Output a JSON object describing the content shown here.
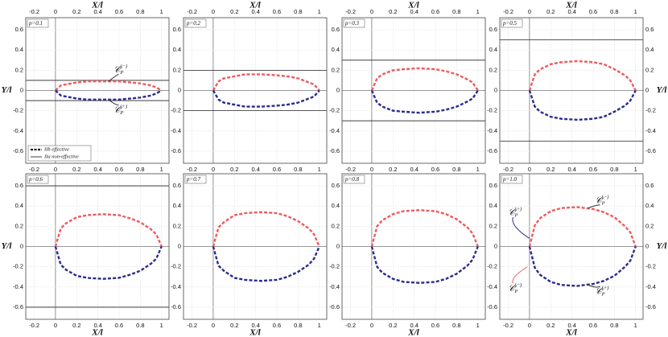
{
  "chart_data": [
    {
      "type": "line",
      "label": "p=0.1",
      "xlabel": "X/l",
      "ylabel": "Y/l",
      "x": [
        0,
        0.05,
        0.1,
        0.2,
        0.3,
        0.45,
        0.6,
        0.7,
        0.8,
        0.9,
        0.95,
        1
      ],
      "series": [
        {
          "color": "#ef5a5f",
          "values": [
            0,
            0.05,
            0.06,
            0.08,
            0.09,
            0.09,
            0.09,
            0.08,
            0.07,
            0.05,
            0.03,
            0
          ]
        },
        {
          "color": "#2a2c8c",
          "values": [
            0,
            -0.05,
            -0.06,
            -0.08,
            -0.09,
            -0.09,
            -0.09,
            -0.08,
            -0.07,
            -0.05,
            -0.03,
            0
          ]
        }
      ],
      "hlines": [
        0.1,
        -0.1
      ],
      "xlim": [
        -0.28,
        1.07
      ],
      "ylim": [
        -0.72,
        0.72
      ],
      "xticks": [
        -0.2,
        0,
        0.2,
        0.4,
        0.6,
        0.8,
        1
      ],
      "yticks": [
        -0.6,
        -0.4,
        -0.2,
        0,
        0.2,
        0.4,
        0.6
      ],
      "grid": true,
      "legend": [
        {
          "label": "IIb effective",
          "style": "dashed"
        },
        {
          "label": "IIa non-effective",
          "style": "solid"
        }
      ],
      "annotations": [
        {
          "base": "𝒞",
          "sub": "P",
          "sup": "(−)"
        },
        {
          "base": "𝒞",
          "sub": "P",
          "sup": "(+)"
        }
      ]
    },
    {
      "type": "line",
      "label": "p=0.2",
      "xlabel": "X/l",
      "x": [
        0,
        0.05,
        0.1,
        0.2,
        0.3,
        0.45,
        0.6,
        0.7,
        0.8,
        0.9,
        0.95,
        1
      ],
      "series": [
        {
          "color": "#ef5a5f",
          "values": [
            0,
            0.09,
            0.12,
            0.14,
            0.16,
            0.16,
            0.15,
            0.14,
            0.12,
            0.08,
            0.06,
            0
          ]
        },
        {
          "color": "#2a2c8c",
          "values": [
            0,
            -0.09,
            -0.12,
            -0.14,
            -0.16,
            -0.16,
            -0.15,
            -0.14,
            -0.12,
            -0.08,
            -0.06,
            0
          ]
        }
      ],
      "hlines": [
        0.2,
        -0.2
      ],
      "xlim": [
        -0.28,
        1.07
      ],
      "ylim": [
        -0.72,
        0.72
      ],
      "xticks": [
        -0.2,
        0,
        0.2,
        0.4,
        0.6,
        0.8,
        1
      ],
      "yticks": [
        -0.6,
        -0.4,
        -0.2,
        0,
        0.2,
        0.4,
        0.6
      ],
      "grid": true
    },
    {
      "type": "line",
      "label": "p=0.3",
      "xlabel": "X/l",
      "x": [
        0,
        0.05,
        0.1,
        0.2,
        0.3,
        0.45,
        0.6,
        0.7,
        0.8,
        0.9,
        0.95,
        1
      ],
      "series": [
        {
          "color": "#ef5a5f",
          "values": [
            0,
            0.12,
            0.16,
            0.2,
            0.21,
            0.22,
            0.21,
            0.19,
            0.16,
            0.11,
            0.08,
            0
          ]
        },
        {
          "color": "#2a2c8c",
          "values": [
            0,
            -0.12,
            -0.16,
            -0.2,
            -0.21,
            -0.22,
            -0.21,
            -0.19,
            -0.16,
            -0.11,
            -0.08,
            0
          ]
        }
      ],
      "hlines": [
        0.3,
        -0.3
      ],
      "xlim": [
        -0.28,
        1.07
      ],
      "ylim": [
        -0.72,
        0.72
      ],
      "xticks": [
        -0.2,
        0,
        0.2,
        0.4,
        0.6,
        0.8,
        1
      ],
      "yticks": [
        -0.6,
        -0.4,
        -0.2,
        0,
        0.2,
        0.4,
        0.6
      ],
      "grid": true
    },
    {
      "type": "line",
      "label": "p=0.5",
      "xlabel": "X/l",
      "ylabel": "Y/l",
      "x": [
        0,
        0.05,
        0.1,
        0.2,
        0.3,
        0.45,
        0.6,
        0.7,
        0.8,
        0.9,
        0.95,
        1
      ],
      "series": [
        {
          "color": "#ef5a5f",
          "values": [
            0,
            0.16,
            0.21,
            0.26,
            0.28,
            0.29,
            0.28,
            0.26,
            0.21,
            0.15,
            0.1,
            0
          ]
        },
        {
          "color": "#2a2c8c",
          "values": [
            0,
            -0.16,
            -0.21,
            -0.26,
            -0.28,
            -0.29,
            -0.28,
            -0.26,
            -0.21,
            -0.15,
            -0.1,
            0
          ]
        }
      ],
      "hlines": [
        0.5,
        -0.5
      ],
      "xlim": [
        -0.28,
        1.07
      ],
      "ylim": [
        -0.72,
        0.72
      ],
      "xticks": [
        -0.2,
        0,
        0.2,
        0.4,
        0.6,
        0.8,
        1
      ],
      "yticks": [
        -0.6,
        -0.4,
        -0.2,
        0,
        0.2,
        0.4,
        0.6
      ],
      "grid": true
    },
    {
      "type": "line",
      "label": "p=0.6",
      "xlabel": "X/l",
      "ylabel": "Y/l",
      "x": [
        0,
        0.05,
        0.1,
        0.2,
        0.3,
        0.45,
        0.6,
        0.7,
        0.8,
        0.9,
        0.95,
        1
      ],
      "series": [
        {
          "color": "#ef5a5f",
          "values": [
            0,
            0.18,
            0.23,
            0.29,
            0.31,
            0.32,
            0.31,
            0.28,
            0.24,
            0.17,
            0.12,
            0
          ]
        },
        {
          "color": "#2a2c8c",
          "values": [
            0,
            -0.18,
            -0.23,
            -0.29,
            -0.31,
            -0.32,
            -0.31,
            -0.28,
            -0.24,
            -0.17,
            -0.12,
            0
          ]
        }
      ],
      "hlines": [
        0.6,
        -0.6
      ],
      "xlim": [
        -0.28,
        1.07
      ],
      "ylim": [
        -0.72,
        0.72
      ],
      "xticks": [
        -0.2,
        0,
        0.2,
        0.4,
        0.6,
        0.8,
        1
      ],
      "yticks": [
        -0.6,
        -0.4,
        -0.2,
        0,
        0.2,
        0.4,
        0.6
      ],
      "grid": true
    },
    {
      "type": "line",
      "label": "p=0.7",
      "xlabel": "X/l",
      "x": [
        0,
        0.05,
        0.1,
        0.2,
        0.3,
        0.45,
        0.6,
        0.7,
        0.8,
        0.9,
        0.95,
        1
      ],
      "series": [
        {
          "color": "#ef5a5f",
          "values": [
            0,
            0.19,
            0.24,
            0.31,
            0.33,
            0.34,
            0.33,
            0.3,
            0.25,
            0.18,
            0.12,
            0
          ]
        },
        {
          "color": "#2a2c8c",
          "values": [
            0,
            -0.19,
            -0.24,
            -0.31,
            -0.33,
            -0.34,
            -0.33,
            -0.3,
            -0.25,
            -0.18,
            -0.12,
            0
          ]
        }
      ],
      "xlim": [
        -0.28,
        1.07
      ],
      "ylim": [
        -0.72,
        0.72
      ],
      "xticks": [
        -0.2,
        0,
        0.2,
        0.4,
        0.6,
        0.8,
        1
      ],
      "yticks": [
        -0.6,
        -0.4,
        -0.2,
        0,
        0.2,
        0.4,
        0.6
      ],
      "grid": true
    },
    {
      "type": "line",
      "label": "p=0.8",
      "xlabel": "X/l",
      "x": [
        0,
        0.05,
        0.1,
        0.2,
        0.3,
        0.45,
        0.6,
        0.7,
        0.8,
        0.9,
        0.95,
        1
      ],
      "series": [
        {
          "color": "#ef5a5f",
          "values": [
            0,
            0.2,
            0.26,
            0.32,
            0.35,
            0.36,
            0.35,
            0.32,
            0.27,
            0.19,
            0.13,
            0
          ]
        },
        {
          "color": "#2a2c8c",
          "values": [
            0,
            -0.2,
            -0.26,
            -0.32,
            -0.35,
            -0.36,
            -0.35,
            -0.32,
            -0.27,
            -0.19,
            -0.13,
            0
          ]
        }
      ],
      "xlim": [
        -0.28,
        1.07
      ],
      "ylim": [
        -0.72,
        0.72
      ],
      "xticks": [
        -0.2,
        0,
        0.2,
        0.4,
        0.6,
        0.8,
        1
      ],
      "yticks": [
        -0.6,
        -0.4,
        -0.2,
        0,
        0.2,
        0.4,
        0.6
      ],
      "grid": true
    },
    {
      "type": "line",
      "label": "p=1.0",
      "xlabel": "X/l",
      "ylabel": "Y/l",
      "x": [
        0,
        0.05,
        0.1,
        0.2,
        0.3,
        0.45,
        0.6,
        0.7,
        0.8,
        0.9,
        0.95,
        1
      ],
      "series": [
        {
          "color": "#ef5a5f",
          "values": [
            0,
            0.21,
            0.28,
            0.35,
            0.38,
            0.39,
            0.37,
            0.34,
            0.29,
            0.2,
            0.14,
            0
          ]
        },
        {
          "color": "#2a2c8c",
          "values": [
            0,
            -0.21,
            -0.28,
            -0.35,
            -0.38,
            -0.39,
            -0.37,
            -0.34,
            -0.29,
            -0.2,
            -0.14,
            0
          ]
        }
      ],
      "xlim": [
        -0.28,
        1.07
      ],
      "ylim": [
        -0.72,
        0.72
      ],
      "xticks": [
        -0.2,
        0,
        0.2,
        0.4,
        0.6,
        0.8,
        1
      ],
      "yticks": [
        -0.6,
        -0.4,
        -0.2,
        0,
        0.2,
        0.4,
        0.6
      ],
      "grid": true,
      "annotations": [
        {
          "base": "𝒞",
          "sub": "P",
          "sup": "(+)"
        },
        {
          "base": "𝒞",
          "sub": "P",
          "sup": "(−)"
        },
        {
          "base": "𝒞",
          "sub": "P",
          "sup": "(−)"
        },
        {
          "base": "𝒞",
          "sub": "P",
          "sup": "(+)"
        }
      ]
    }
  ]
}
